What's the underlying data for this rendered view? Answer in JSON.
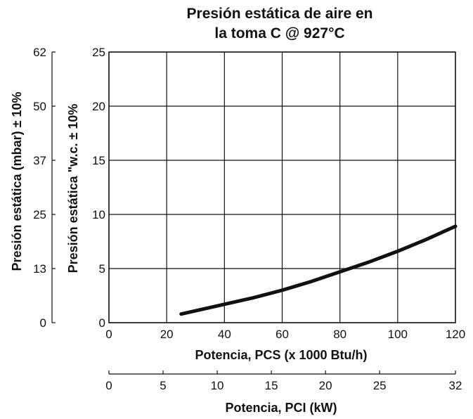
{
  "chart_data": {
    "type": "line",
    "title": [
      "Presión estática de aire en",
      "la toma C @ 927°C"
    ],
    "xlabel": "Potencia, PCS (x 1000 Btu/h)",
    "xlim": [
      0,
      120
    ],
    "xticks": [
      0,
      20,
      40,
      60,
      80,
      100,
      120
    ],
    "ylabel": "Presión estática \"w.c. ± 10%",
    "ylim": [
      0,
      25
    ],
    "yticks": [
      0,
      5,
      10,
      15,
      20,
      25
    ],
    "y2label": "Presión estática (mbar) ± 10%",
    "y2ticks": [
      {
        "label": "0",
        "at": 0
      },
      {
        "label": "13",
        "at": 5
      },
      {
        "label": "25",
        "at": 10
      },
      {
        "label": "37",
        "at": 15
      },
      {
        "label": "50",
        "at": 20
      },
      {
        "label": "62",
        "at": 25
      }
    ],
    "x2label": "Potencia, PCI (kW)",
    "x2lim": [
      0,
      32
    ],
    "x2ticks": [
      0,
      5,
      10,
      15,
      20,
      25,
      32
    ],
    "grid": true,
    "series": [
      {
        "x": [
          25,
          30,
          40,
          50,
          60,
          70,
          80,
          90,
          100,
          110,
          120
        ],
        "y": [
          0.8,
          1.1,
          1.7,
          2.3,
          3.0,
          3.8,
          4.7,
          5.6,
          6.6,
          7.7,
          8.9
        ]
      }
    ]
  }
}
